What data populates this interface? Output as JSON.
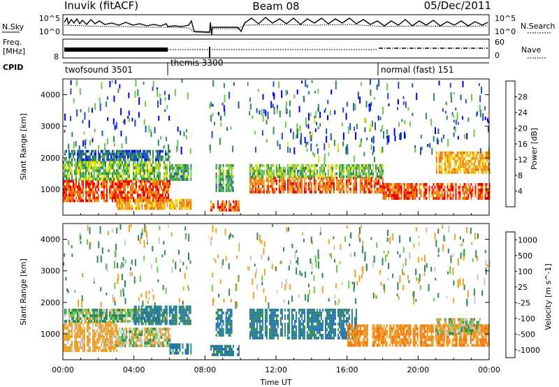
{
  "header": {
    "title_left": "Inuvik (fitACF)",
    "title_center": "Beam 08",
    "title_right": "05/Dec/2011"
  },
  "panels": {
    "noise": {
      "label_left": "N.Sky",
      "label_right": "N.Search",
      "ticks_left": [
        "10^5",
        "10^0"
      ],
      "ticks_right": [
        "10^5",
        "10^0"
      ]
    },
    "freq": {
      "label_left_1": "Freq.",
      "label_left_2": "[MHz]",
      "label_right": "Nave",
      "ticks_left": [
        "8"
      ],
      "ticks_right": [
        "60",
        "0"
      ]
    },
    "cpid": {
      "label": "CPID",
      "segments": [
        {
          "start": "00:00",
          "end": "06:00",
          "name": "twofsound 3501"
        },
        {
          "start": "06:00",
          "end": "18:00",
          "name": "themis 3300"
        },
        {
          "start": "18:00",
          "end": "24:00",
          "name": "normal (fast) 151"
        }
      ]
    }
  },
  "chart_data": [
    {
      "type": "heatmap",
      "name": "power",
      "ylabel": "Slant Range [km]",
      "yticks": [
        1000,
        2000,
        3000,
        4000
      ],
      "ylim": [
        180,
        4500
      ],
      "colorbar_label": "Power [dB]",
      "colorbar_ticks": [
        4,
        8,
        12,
        16,
        20,
        24,
        28
      ],
      "colors": [
        "#0000f0",
        "#2050c0",
        "#2d8a58",
        "#6cc84a",
        "#f0e000",
        "#f0a020",
        "#f07000",
        "#f00000"
      ],
      "bands": [
        {
          "t0": 0.0,
          "t1": 6.0,
          "r0": 650,
          "r1": 1300,
          "v": 27
        },
        {
          "t0": 0.0,
          "t1": 6.0,
          "r0": 1300,
          "r1": 1900,
          "v": 14
        },
        {
          "t0": 0.0,
          "t1": 6.0,
          "r0": 1900,
          "r1": 2250,
          "v": 8
        },
        {
          "t0": 3.0,
          "t1": 7.2,
          "r0": 380,
          "r1": 700,
          "v": 22
        },
        {
          "t0": 6.0,
          "t1": 7.2,
          "r0": 1300,
          "r1": 1800,
          "v": 12
        },
        {
          "t0": 8.3,
          "t1": 9.9,
          "r0": 300,
          "r1": 650,
          "v": 26
        },
        {
          "t0": 8.6,
          "t1": 9.6,
          "r0": 1000,
          "r1": 1800,
          "v": 12
        },
        {
          "t0": 10.5,
          "t1": 18.0,
          "r0": 900,
          "r1": 1400,
          "v": 26
        },
        {
          "t0": 10.5,
          "t1": 18.0,
          "r0": 1400,
          "r1": 1800,
          "v": 14
        },
        {
          "t0": 18.0,
          "t1": 24.0,
          "r0": 700,
          "r1": 1200,
          "v": 27
        },
        {
          "t0": 21.0,
          "t1": 24.0,
          "r0": 1500,
          "r1": 2200,
          "v": 22
        }
      ],
      "scatter_gates": [
        {
          "t0": 0.0,
          "t1": 24.0,
          "r0": 2300,
          "r1": 4500,
          "v": 8
        },
        {
          "t0": 12.5,
          "t1": 18.0,
          "r0": 2000,
          "r1": 3300,
          "v": 12
        }
      ]
    },
    {
      "type": "heatmap",
      "name": "velocity",
      "xlabel": "Time UT",
      "xticks": [
        "00:00",
        "04:00",
        "08:00",
        "12:00",
        "16:00",
        "20:00",
        "00:00"
      ],
      "ylabel": "Slant Range [km]",
      "yticks": [
        1000,
        2000,
        3000,
        4000
      ],
      "ylim": [
        180,
        4500
      ],
      "colorbar_label": "Velocity [m s^-1]",
      "colorbar_ticks": [
        "1000",
        "500",
        "100",
        "25",
        "-25",
        "-100",
        "-500",
        "-1000"
      ],
      "colors": [
        "#1e3cb4",
        "#2070c0",
        "#2d8a58",
        "#6cc84a",
        "#c8c8c0",
        "#f0a020",
        "#f07000",
        "#f00000"
      ],
      "bands": [
        {
          "t0": 0.0,
          "t1": 3.0,
          "r0": 500,
          "r1": 1400,
          "v": -150
        },
        {
          "t0": 0.0,
          "t1": 6.0,
          "r0": 1400,
          "r1": 1800,
          "v": 60
        },
        {
          "t0": 3.0,
          "t1": 6.0,
          "r0": 600,
          "r1": 1200,
          "v": -10
        },
        {
          "t0": 4.0,
          "t1": 7.2,
          "r0": 1300,
          "r1": 1900,
          "v": 300
        },
        {
          "t0": 6.0,
          "t1": 7.2,
          "r0": 400,
          "r1": 700,
          "v": 300
        },
        {
          "t0": 8.3,
          "t1": 9.9,
          "r0": 300,
          "r1": 650,
          "v": 300
        },
        {
          "t0": 8.6,
          "t1": 9.6,
          "r0": 1000,
          "r1": 1800,
          "v": 300
        },
        {
          "t0": 10.5,
          "t1": 16.5,
          "r0": 900,
          "r1": 1800,
          "v": 300
        },
        {
          "t0": 16.0,
          "t1": 24.0,
          "r0": 600,
          "r1": 1300,
          "v": -300
        },
        {
          "t0": 21.0,
          "t1": 23.5,
          "r0": 1000,
          "r1": 1500,
          "v": -10
        }
      ],
      "scatter_gates": [
        {
          "t0": 0.0,
          "t1": 24.0,
          "r0": 2000,
          "r1": 4500,
          "v": 60
        }
      ]
    }
  ]
}
